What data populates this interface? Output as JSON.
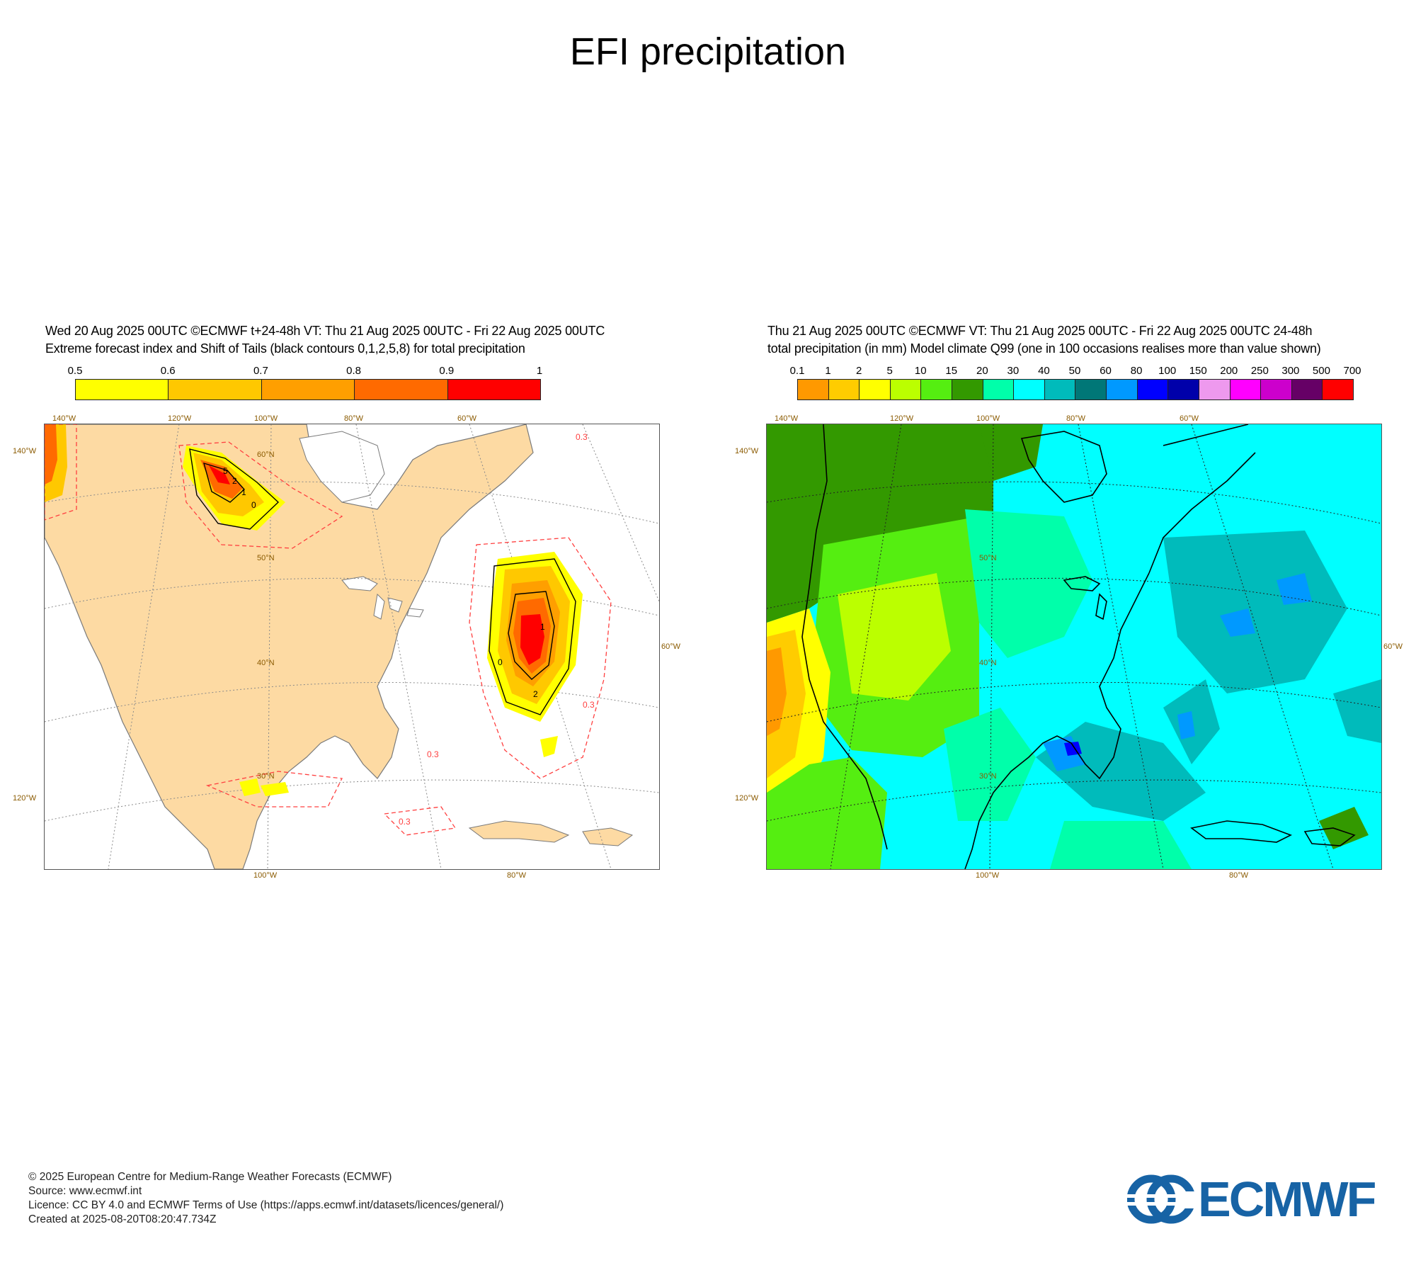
{
  "title": "EFI precipitation",
  "left_panel": {
    "header_line1": "Wed 20 Aug 2025 00UTC ©ECMWF t+24-48h  VT: Thu 21 Aug 2025 00UTC - Fri 22 Aug 2025 00UTC",
    "header_line2": "Extreme forecast index and Shift of Tails (black contours 0,1,2,5,8) for total precipitation",
    "colorbar": {
      "ticks": [
        "0.5",
        "0.6",
        "0.7",
        "0.8",
        "0.9",
        "1"
      ],
      "colors": [
        "#ffff00",
        "#ffc800",
        "#ff9f00",
        "#ff6a00",
        "#ff0000"
      ]
    },
    "map": {
      "land_color": "#fddaa3",
      "ocean_color": "#ffffff",
      "efi_contour_labels": [
        "0.3",
        "0.3",
        "0.3",
        "0.3"
      ],
      "sot_contour_labels": [
        "0",
        "1",
        "2",
        "5",
        "0",
        "1",
        "2"
      ],
      "axis_labels": {
        "top": [
          "140°W",
          "120°W",
          "100°W",
          "80°W",
          "60°W"
        ],
        "left": [
          "140°W",
          "120°W"
        ],
        "right": [
          "60°W"
        ],
        "bottom": [
          "100°W",
          "80°W"
        ],
        "inner": [
          "60°N",
          "50°N",
          "40°N",
          "30°N"
        ]
      }
    }
  },
  "right_panel": {
    "header_line1": "Thu 21 Aug 2025 00UTC ©ECMWF VT: Thu 21 Aug 2025 00UTC - Fri 22 Aug 2025 00UTC   24-48h",
    "header_line2": "total precipitation (in mm)  Model climate Q99 (one in 100 occasions realises more than value shown)",
    "colorbar": {
      "ticks": [
        "0.1",
        "1",
        "2",
        "5",
        "10",
        "15",
        "20",
        "30",
        "40",
        "50",
        "60",
        "80",
        "100",
        "150",
        "200",
        "250",
        "300",
        "500",
        "700"
      ],
      "colors": [
        "#ff9900",
        "#ffcc00",
        "#ffff00",
        "#bbff00",
        "#55ee11",
        "#339900",
        "#00ffaa",
        "#00ffff",
        "#00bbbb",
        "#007777",
        "#0099ff",
        "#0000ff",
        "#0000aa",
        "#ee99ee",
        "#ff00ff",
        "#cc00cc",
        "#660066",
        "#ff0000"
      ]
    },
    "map": {
      "axis_labels": {
        "top": [
          "140°W",
          "120°W",
          "100°W",
          "80°W",
          "60°W"
        ],
        "left": [
          "140°W",
          "120°W"
        ],
        "right": [
          "60°W"
        ],
        "bottom": [
          "100°W",
          "80°W"
        ],
        "inner": [
          "50°N",
          "40°N",
          "30°N"
        ]
      }
    }
  },
  "footer": {
    "copyright": "© 2025 European Centre for Medium-Range Weather Forecasts (ECMWF)",
    "source": "Source: www.ecmwf.int",
    "licence": "Licence: CC BY 4.0 and ECMWF Terms of Use (https://apps.ecmwf.int/datasets/licences/general/)",
    "created": "Created at 2025-08-20T08:20:47.734Z"
  },
  "logo": {
    "text": "ECMWF",
    "color": "#1763a5"
  }
}
